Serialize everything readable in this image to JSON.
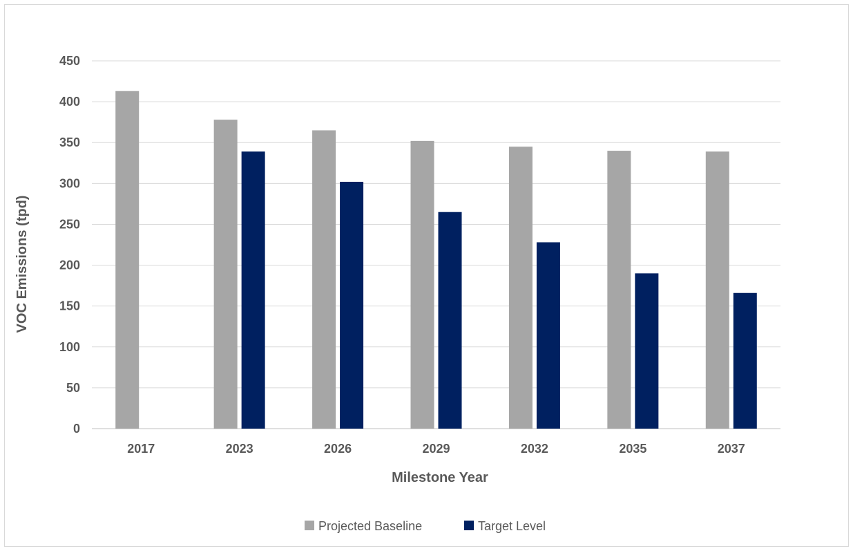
{
  "chart_data": {
    "type": "bar",
    "title": "",
    "xlabel": "Milestone Year",
    "ylabel": "VOC Emissions (tpd)",
    "ylim": [
      0,
      450
    ],
    "yticks": [
      0,
      50,
      100,
      150,
      200,
      250,
      300,
      350,
      400,
      450
    ],
    "grid": true,
    "legend_position": "bottom",
    "categories": [
      "2017",
      "2023",
      "2026",
      "2029",
      "2032",
      "2035",
      "2037"
    ],
    "series": [
      {
        "name": "Projected Baseline",
        "color": "#a6a6a6",
        "values": [
          413,
          378,
          365,
          352,
          345,
          340,
          339
        ]
      },
      {
        "name": "Target Level",
        "color": "#002060",
        "values": [
          null,
          339,
          302,
          265,
          228,
          190,
          166
        ]
      }
    ]
  }
}
